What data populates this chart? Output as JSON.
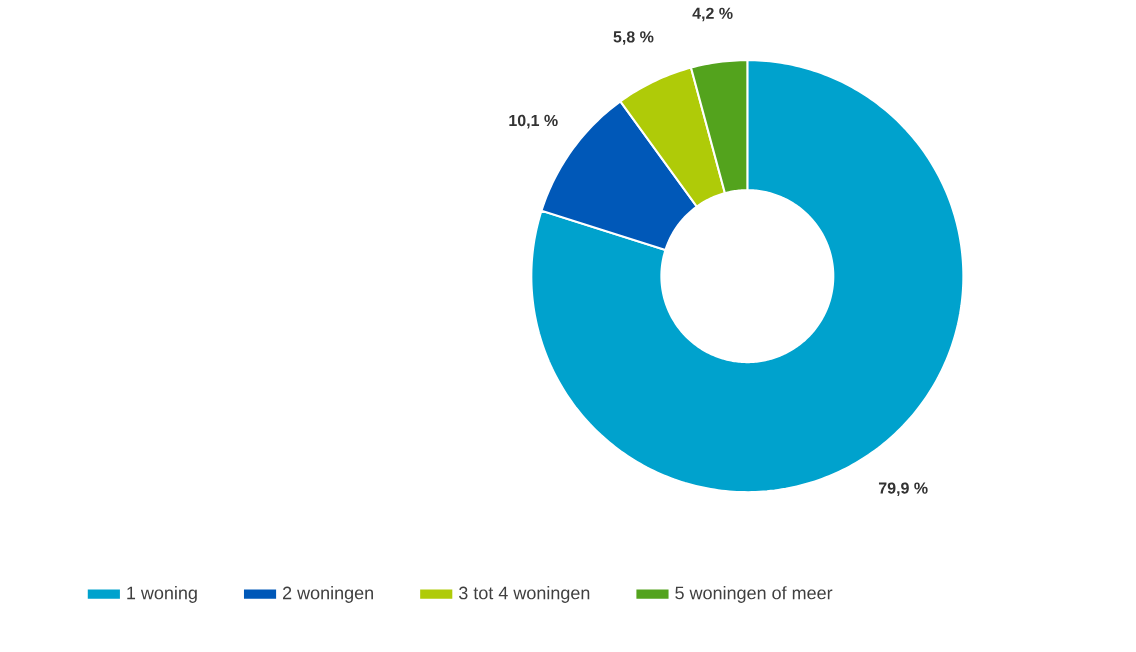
{
  "chart_data": {
    "type": "donut",
    "categories": [
      "1 woning",
      "2 woningen",
      "3 tot 4 woningen",
      "5 woningen of meer"
    ],
    "values": [
      79.9,
      10.1,
      5.8,
      4.2
    ],
    "colors": [
      "#00a2cd",
      "#0058b8",
      "#afcb08",
      "#53a31d"
    ],
    "value_labels": [
      "79,9 %",
      "10,1 %",
      "5,8 %",
      "4,2 %"
    ],
    "legend": "bottom"
  }
}
